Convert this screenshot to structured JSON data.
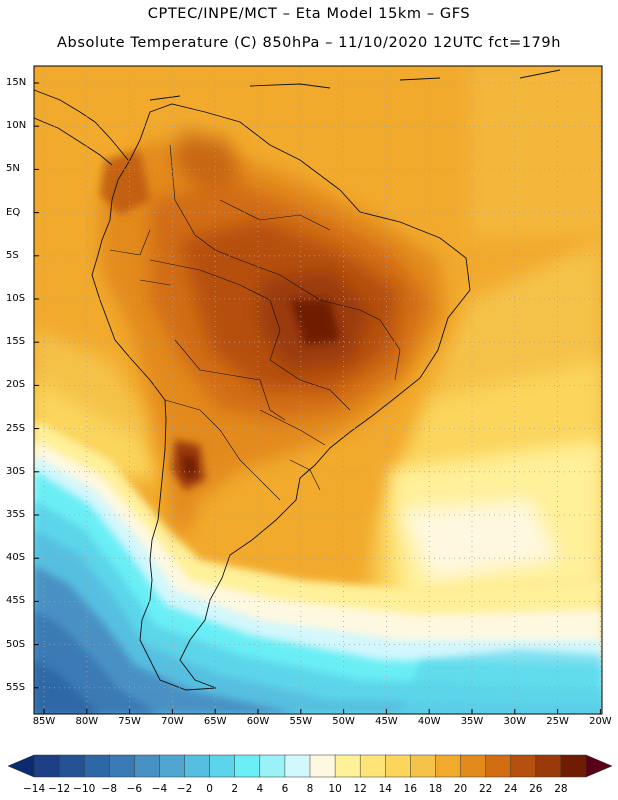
{
  "header": {
    "line1": "CPTEC/INPE/MCT –  Eta Model 15km – GFS",
    "line2": "Absolute Temperature (C) 850hPa – 11/10/2020 12UTC fct=179h"
  },
  "map": {
    "lat_labels": [
      "15N",
      "10N",
      "5N",
      "EQ",
      "5S",
      "10S",
      "15S",
      "20S",
      "25S",
      "30S",
      "35S",
      "40S",
      "45S",
      "50S",
      "55S"
    ],
    "lon_labels": [
      "85W",
      "80W",
      "75W",
      "70W",
      "65W",
      "60W",
      "55W",
      "50W",
      "45W",
      "40W",
      "35W",
      "30W",
      "25W",
      "20W"
    ],
    "grid": "dotted"
  },
  "colorbar": {
    "labels": [
      "-14",
      "-12",
      "-10",
      "-8",
      "-6",
      "-4",
      "-2",
      "0",
      "2",
      "4",
      "6",
      "8",
      "10",
      "12",
      "14",
      "16",
      "18",
      "20",
      "22",
      "24",
      "26",
      "28"
    ],
    "colors": [
      "#1c3f86",
      "#245394",
      "#2e67a6",
      "#3a7ab5",
      "#4891c4",
      "#4fa6d1",
      "#56bfe0",
      "#5cd5ea",
      "#6beef5",
      "#9af2f8",
      "#d2f7fc",
      "#fff8e0",
      "#fff09a",
      "#ffe47a",
      "#fbd55c",
      "#f5c24a",
      "#f2aa2d",
      "#e38a1c",
      "#d26d12",
      "#b6500e",
      "#9a3a0a",
      "#6f1c05"
    ],
    "under_color": "#0b2a70",
    "over_color": "#5a0016"
  }
}
